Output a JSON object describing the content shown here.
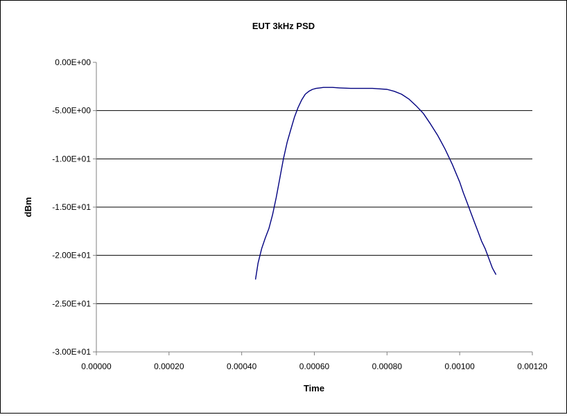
{
  "chart_data": {
    "type": "line",
    "title": "EUT 3kHz PSD",
    "xlabel": "Time",
    "ylabel": "dBm",
    "xlim": [
      0,
      0.0012
    ],
    "ylim": [
      -30,
      0
    ],
    "x_ticks": [
      0,
      0.0002,
      0.0004,
      0.0006,
      0.0008,
      0.001,
      0.0012
    ],
    "x_tick_labels": [
      "0.00000",
      "0.00020",
      "0.00040",
      "0.00060",
      "0.00080",
      "0.00100",
      "0.00120"
    ],
    "y_ticks": [
      0,
      -5,
      -10,
      -15,
      -20,
      -25,
      -30
    ],
    "y_tick_labels": [
      "0.00E+00",
      "-5.00E+00",
      "-1.00E+01",
      "-1.50E+01",
      "-2.00E+01",
      "-2.50E+01",
      "-3.00E+01"
    ],
    "grid": "horizontal",
    "legend": "none",
    "line_color": "#000080",
    "series": [
      {
        "x": [
          0.000438,
          0.000445,
          0.000455,
          0.000465,
          0.000475,
          0.000485,
          0.000495,
          0.000505,
          0.000515,
          0.000525,
          0.000535,
          0.000545,
          0.000555,
          0.000565,
          0.000575,
          0.000585,
          0.000595,
          0.000605,
          0.000615,
          0.000625,
          0.000635,
          0.00065,
          0.00067,
          0.0007,
          0.00073,
          0.00076,
          0.00078,
          0.0008,
          0.00082,
          0.00084,
          0.00086,
          0.00088,
          0.0009,
          0.00092,
          0.00094,
          0.00096,
          0.00098,
          0.00099,
          0.001,
          0.00101,
          0.00102,
          0.00103,
          0.00104,
          0.00105,
          0.00106,
          0.00107,
          0.00108,
          0.00109,
          0.0011
        ],
        "y": [
          -22.5,
          -20.8,
          -19.3,
          -18.2,
          -17.2,
          -15.8,
          -14.0,
          -12.0,
          -10.0,
          -8.3,
          -7.0,
          -5.7,
          -4.7,
          -3.9,
          -3.3,
          -3.0,
          -2.8,
          -2.7,
          -2.65,
          -2.6,
          -2.6,
          -2.6,
          -2.65,
          -2.7,
          -2.7,
          -2.7,
          -2.75,
          -2.8,
          -3.0,
          -3.3,
          -3.8,
          -4.5,
          -5.3,
          -6.4,
          -7.6,
          -9.0,
          -10.6,
          -11.5,
          -12.4,
          -13.5,
          -14.5,
          -15.5,
          -16.5,
          -17.5,
          -18.5,
          -19.3,
          -20.3,
          -21.3,
          -22.0
        ]
      }
    ]
  }
}
